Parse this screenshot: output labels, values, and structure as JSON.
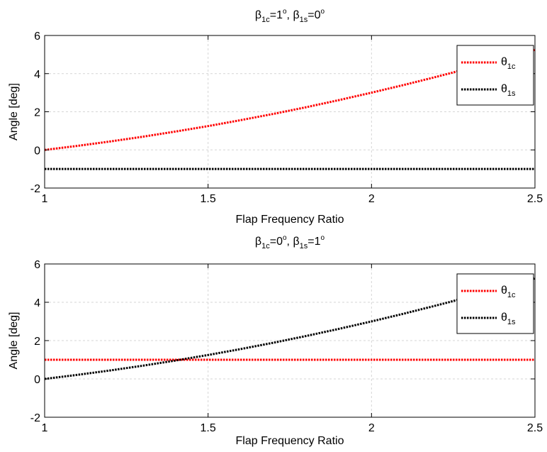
{
  "chart_data": [
    {
      "type": "line",
      "title": {
        "base1": "β",
        "sub1": "1c",
        "mid1": "=1",
        "sup1": "o",
        "sep": ", ",
        "base2": "β",
        "sub2": "1s",
        "mid2": "=0",
        "sup2": "o"
      },
      "xlabel": "Flap Frequency Ratio",
      "ylabel": "Angle [deg]",
      "xlim": [
        1,
        2.5
      ],
      "ylim": [
        -2,
        6
      ],
      "xticks": [
        "1",
        "1.5",
        "2",
        "2.5"
      ],
      "xtick_values": [
        1,
        1.5,
        2,
        2.5
      ],
      "yticks": [
        "-2",
        "0",
        "2",
        "4",
        "6"
      ],
      "ytick_values": [
        -2,
        0,
        2,
        4,
        6
      ],
      "grid": true,
      "legend_position": "top-right",
      "series": [
        {
          "name_base": "θ",
          "name_sub": "1c",
          "color": "#ff0000",
          "style": "dotted",
          "x": [
            1.0,
            1.1,
            1.2,
            1.3,
            1.4,
            1.5,
            1.6,
            1.7,
            1.8,
            1.9,
            2.0,
            2.1,
            2.2,
            2.3,
            2.4,
            2.5
          ],
          "y": [
            0.0,
            0.21,
            0.44,
            0.69,
            0.96,
            1.25,
            1.56,
            1.89,
            2.24,
            2.61,
            3.0,
            3.41,
            3.84,
            4.29,
            4.76,
            5.25
          ]
        },
        {
          "name_base": "θ",
          "name_sub": "1s",
          "color": "#000000",
          "style": "dotted",
          "x": [
            1.0,
            2.5
          ],
          "y": [
            -1.0,
            -1.0
          ]
        }
      ]
    },
    {
      "type": "line",
      "title": {
        "base1": "β",
        "sub1": "1c",
        "mid1": "=0",
        "sup1": "o",
        "sep": ", ",
        "base2": "β",
        "sub2": "1s",
        "mid2": "=1",
        "sup2": "o"
      },
      "xlabel": "Flap Frequency Ratio",
      "ylabel": "Angle [deg]",
      "xlim": [
        1,
        2.5
      ],
      "ylim": [
        -2,
        6
      ],
      "xticks": [
        "1",
        "1.5",
        "2",
        "2.5"
      ],
      "xtick_values": [
        1,
        1.5,
        2,
        2.5
      ],
      "yticks": [
        "-2",
        "0",
        "2",
        "4",
        "6"
      ],
      "ytick_values": [
        -2,
        0,
        2,
        4,
        6
      ],
      "grid": true,
      "legend_position": "top-right",
      "series": [
        {
          "name_base": "θ",
          "name_sub": "1c",
          "color": "#ff0000",
          "style": "dotted",
          "x": [
            1.0,
            2.5
          ],
          "y": [
            1.0,
            1.0
          ]
        },
        {
          "name_base": "θ",
          "name_sub": "1s",
          "color": "#000000",
          "style": "dotted",
          "x": [
            1.0,
            1.1,
            1.2,
            1.3,
            1.4,
            1.5,
            1.6,
            1.7,
            1.8,
            1.9,
            2.0,
            2.1,
            2.2,
            2.3,
            2.4,
            2.5
          ],
          "y": [
            0.0,
            0.21,
            0.44,
            0.69,
            0.96,
            1.25,
            1.56,
            1.89,
            2.24,
            2.61,
            3.0,
            3.41,
            3.84,
            4.29,
            4.76,
            5.25
          ]
        }
      ]
    }
  ]
}
